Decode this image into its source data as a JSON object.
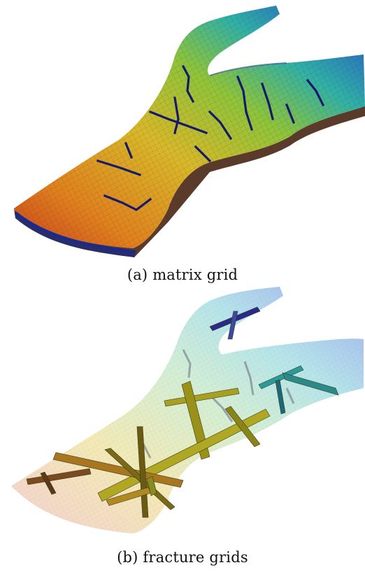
{
  "figure": {
    "panels": [
      {
        "id": "a",
        "caption": "(a) matrix grid"
      },
      {
        "id": "b",
        "caption": "(b) fracture grids"
      }
    ],
    "colors": {
      "low": "#1a1a8c",
      "mid_low": "#1f6fbf",
      "mid": "#2fb7a8",
      "mid_high": "#d8c028",
      "high": "#d04a1a",
      "fracture_edge": "#1a2a7a"
    }
  }
}
